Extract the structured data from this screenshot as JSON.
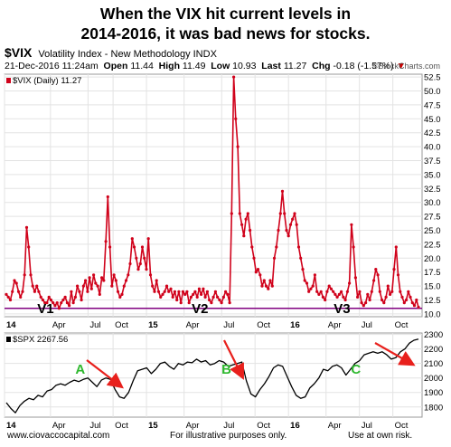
{
  "headline": {
    "line1": "When the VIX hit current levels in",
    "line2": "2014-2016, it was bad news for stocks."
  },
  "header": {
    "symbol": "$VIX",
    "description": "Volatility Index - New Methodology INDX",
    "date": "21-Dec-2016 11:24am",
    "open_label": "Open",
    "open": "11.44",
    "high_label": "High",
    "high": "11.49",
    "low_label": "Low",
    "low": "10.93",
    "last_label": "Last",
    "last": "11.27",
    "chg_label": "Chg",
    "chg": "-0.18 (-1.57%)",
    "chg_arrow": "▼"
  },
  "logo": "©StockCharts.com",
  "footer": {
    "left": "www.ciovaccocapital.com",
    "center": "For illustrative purposes only.",
    "right": "Use at own risk."
  },
  "colors": {
    "vix": "#d0021b",
    "spx": "#000000",
    "support": "#800080",
    "arrow": "#e8201c",
    "label_green": "#2eb82e"
  },
  "chart_data": [
    {
      "type": "line",
      "legend": "$VIX (Daily) 11.27",
      "series": [
        {
          "name": "$VIX (Daily)",
          "values": [
            13.5,
            13,
            12.5,
            14,
            16,
            15.5,
            14,
            13,
            14,
            17,
            25.5,
            22,
            17,
            15,
            14,
            15,
            14,
            13,
            12.5,
            12,
            12,
            13,
            12.5,
            12,
            11.5,
            12,
            11,
            12,
            12.5,
            13,
            12,
            11.5,
            14,
            12,
            13,
            15,
            14,
            12.5,
            15,
            16,
            14,
            16.5,
            14.5,
            17,
            15.5,
            15,
            13.5,
            16.5,
            16,
            23,
            31,
            22,
            15,
            17,
            16,
            14,
            13,
            13.5,
            15,
            16,
            17,
            19,
            23.5,
            22,
            20,
            18,
            19,
            22,
            20,
            18,
            23.5,
            17,
            15,
            14,
            16,
            14,
            13,
            13.5,
            14,
            15,
            14,
            14.5,
            13,
            14,
            12.5,
            14,
            12,
            14,
            13.5,
            14,
            12,
            13,
            13.5,
            14,
            13,
            14.5,
            13.5,
            14.5,
            13,
            14,
            12.5,
            12,
            13,
            14,
            13,
            12.5,
            12,
            13,
            14,
            13.5,
            12,
            28,
            52.5,
            45,
            40,
            28,
            26,
            24,
            27,
            28,
            25,
            22,
            20,
            17.5,
            18,
            17,
            15,
            16,
            15,
            14.5,
            16,
            15,
            20,
            22,
            25,
            28,
            32,
            28,
            25,
            24,
            26,
            27,
            28,
            26,
            22,
            20,
            18,
            16,
            15.5,
            14,
            14.5,
            15,
            17,
            14,
            13.5,
            14,
            13,
            12.5,
            14,
            15,
            14.5,
            14,
            13.5,
            13,
            13.5,
            14,
            13,
            12.5,
            14,
            15.5,
            26,
            22,
            16.5,
            13,
            14,
            12,
            11.5,
            12,
            13.5,
            12.5,
            14,
            16,
            18,
            17,
            14,
            12.5,
            12,
            13,
            15,
            13.5,
            14,
            18,
            22,
            17,
            14,
            13,
            12,
            12.5,
            14,
            13,
            12,
            11.5,
            12.5,
            11.2
          ]
        }
      ],
      "ylim": [
        9.5,
        53
      ],
      "y_ticks": [
        10.0,
        12.5,
        15.0,
        17.5,
        20.0,
        22.5,
        25.0,
        27.5,
        30.0,
        32.5,
        35.0,
        37.5,
        40.0,
        42.5,
        45.0,
        47.5,
        50.0,
        52.5
      ],
      "y_tick_labels": [
        "10.0",
        "12.5",
        "15.0",
        "17.5",
        "20.0",
        "22.5",
        "25.0",
        "27.5",
        "30.0",
        "32.5",
        "35.0",
        "37.5",
        "40.0",
        "42.5",
        "45.0",
        "47.5",
        "50.0",
        "52.5"
      ],
      "support_level": 11.0,
      "annotations": [
        {
          "text": "V1",
          "x": 0.1
        },
        {
          "text": "V2",
          "x": 0.47
        },
        {
          "text": "V3",
          "x": 0.81
        }
      ],
      "x_labels": [
        {
          "text": "14",
          "x": 0.0,
          "bold": true
        },
        {
          "text": "Apr",
          "x": 0.11
        },
        {
          "text": "Jul",
          "x": 0.2
        },
        {
          "text": "Oct",
          "x": 0.26
        },
        {
          "text": "15",
          "x": 0.34,
          "bold": true
        },
        {
          "text": "Apr",
          "x": 0.43
        },
        {
          "text": "Jul",
          "x": 0.52
        },
        {
          "text": "Oct",
          "x": 0.6
        },
        {
          "text": "16",
          "x": 0.68,
          "bold": true
        },
        {
          "text": "Apr",
          "x": 0.77
        },
        {
          "text": "Jul",
          "x": 0.85
        },
        {
          "text": "Oct",
          "x": 0.93
        }
      ]
    },
    {
      "type": "line",
      "legend": "$SPX 2267.56",
      "series": [
        {
          "name": "$SPX",
          "values": [
            1830,
            1790,
            1760,
            1810,
            1840,
            1860,
            1850,
            1880,
            1870,
            1910,
            1920,
            1950,
            1960,
            1950,
            1970,
            1985,
            1975,
            1990,
            2000,
            1970,
            1940,
            1985,
            2000,
            1990,
            1920,
            1870,
            1860,
            1900,
            1980,
            2050,
            2060,
            2070,
            2030,
            2060,
            2100,
            2110,
            2080,
            2060,
            2100,
            2090,
            2110,
            2105,
            2130,
            2110,
            2120,
            2090,
            2100,
            2120,
            2110,
            2080,
            2090,
            2100,
            2110,
            1980,
            1890,
            1870,
            1920,
            1960,
            2010,
            2070,
            2090,
            2080,
            2010,
            1940,
            1880,
            1860,
            1870,
            1930,
            1960,
            2000,
            2060,
            2050,
            2080,
            2090,
            2070,
            2020,
            2060,
            2100,
            2120,
            2160,
            2170,
            2180,
            2170,
            2180,
            2160,
            2130,
            2140,
            2180,
            2200,
            2240,
            2260,
            2267.56
          ]
        }
      ],
      "ylim": [
        1730,
        2310
      ],
      "y_ticks": [
        1800,
        1900,
        2000,
        2100,
        2200,
        2300
      ],
      "y_tick_labels": [
        "1800",
        "1900",
        "2000",
        "2100",
        "2200",
        "2300"
      ],
      "annotations": [
        {
          "text": "A",
          "x": 0.2
        },
        {
          "text": "B",
          "x": 0.55
        },
        {
          "text": "C",
          "x": 0.86
        }
      ],
      "x_labels": [
        {
          "text": "14",
          "x": 0.0,
          "bold": true
        },
        {
          "text": "Apr",
          "x": 0.11
        },
        {
          "text": "Jul",
          "x": 0.2
        },
        {
          "text": "Oct",
          "x": 0.26
        },
        {
          "text": "15",
          "x": 0.34,
          "bold": true
        },
        {
          "text": "Apr",
          "x": 0.43
        },
        {
          "text": "Jul",
          "x": 0.52
        },
        {
          "text": "Oct",
          "x": 0.6
        },
        {
          "text": "16",
          "x": 0.68,
          "bold": true
        },
        {
          "text": "Apr",
          "x": 0.77
        },
        {
          "text": "Jul",
          "x": 0.85
        },
        {
          "text": "Oct",
          "x": 0.93
        }
      ]
    }
  ]
}
